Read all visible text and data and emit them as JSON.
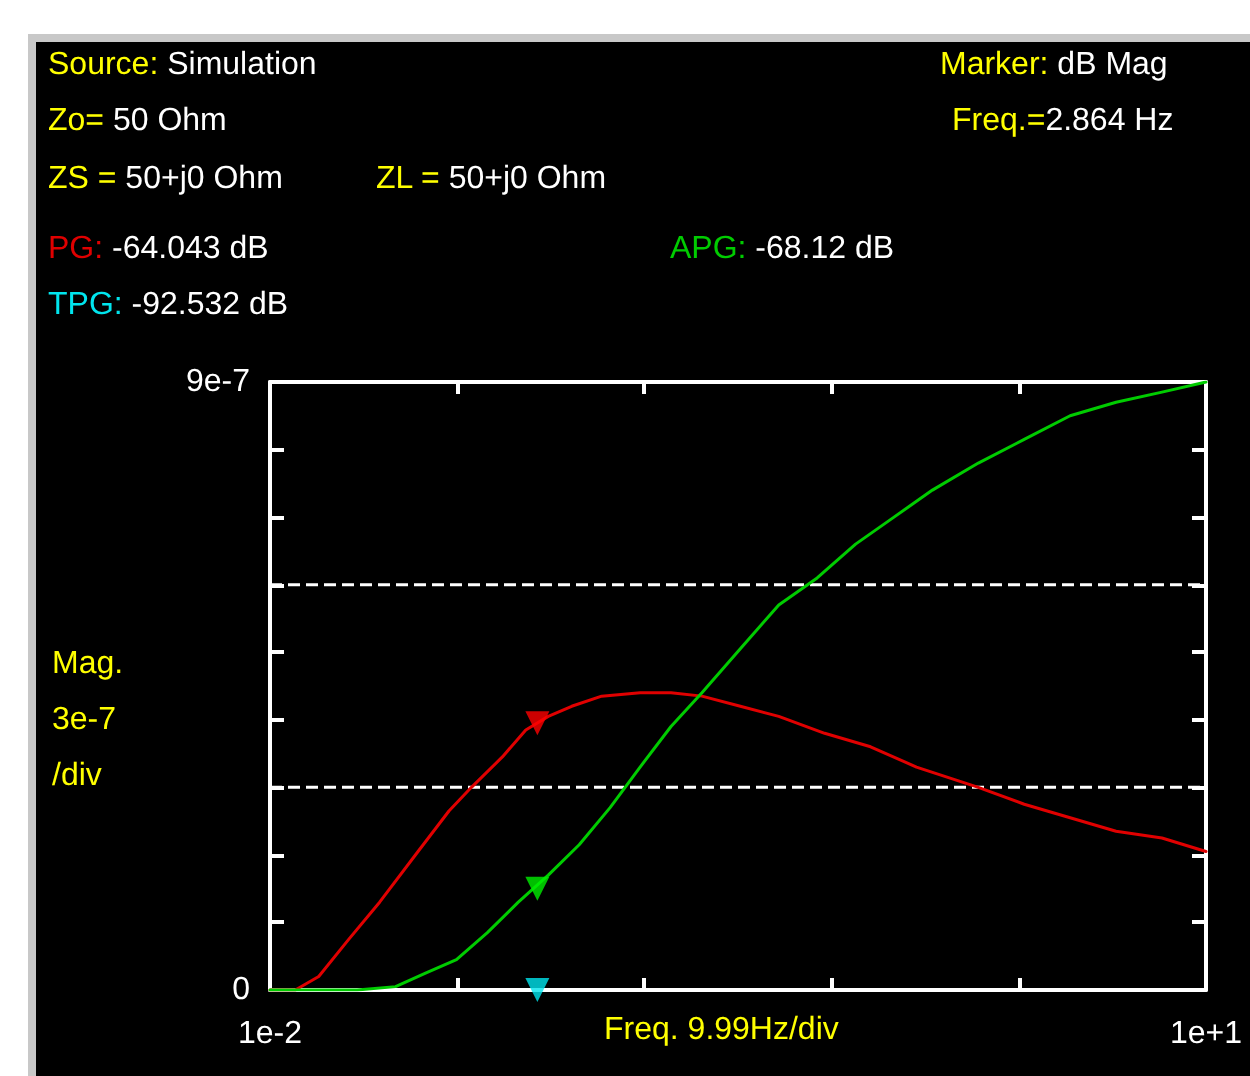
{
  "chart_data": {
    "type": "line",
    "xlabel": "Freq. 9.99Hz/div",
    "ylabel": "Mag.\n3e-7\n/div",
    "annotations": [
      "Source: Simulation",
      "Zo= 50 Ohm",
      "ZS = 50+j0 Ohm",
      "ZL = 50+j0 Ohm",
      "-64.043 dB",
      "-68.12 dB",
      "-92.532 dB",
      "Marker: dB Mag",
      "Freq.=2.864 Hz"
    ],
    "xlim": [
      0.01,
      10
    ],
    "xticks": [
      {
        "value": 0.01,
        "label": "1e-2"
      },
      {
        "value": 2.008,
        "label": null
      },
      {
        "value": 4.006,
        "label": null
      },
      {
        "value": 6.004,
        "label": null
      },
      {
        "value": 8.002,
        "label": null
      },
      {
        "value": 10,
        "label": "1e+1"
      }
    ],
    "ylim": [
      0,
      9e-07
    ],
    "yticks": [
      0,
      {
        "value": 1e-07,
        "label": null
      },
      {
        "value": 2e-07,
        "label": null
      },
      {
        "value": 3e-07,
        "label": null
      },
      {
        "value": 4e-07,
        "label": null
      },
      {
        "value": 5e-07,
        "label": null
      },
      {
        "value": 6e-07,
        "label": null
      },
      {
        "value": 7e-07,
        "label": null
      },
      {
        "value": 8e-07,
        "label": null
      },
      {
        "value": 9e-07,
        "label": "9e-7"
      }
    ],
    "grid": false,
    "marker": "none",
    "line_style": "solid",
    "ref_lines": [
      {
        "axis": "y",
        "value": 3e-07,
        "color": "#ffffff",
        "line_style": "dashed"
      },
      {
        "axis": "y",
        "value": 6e-07,
        "color": "#ffffff",
        "line_style": "dashed"
      }
    ],
    "series": [
      {
        "name": "PG:",
        "color": "#e00000",
        "x": [
          0.01,
          0.28,
          0.53,
          0.85,
          1.18,
          1.59,
          1.92,
          2.16,
          2.49,
          2.74,
          2.98,
          3.23,
          3.55,
          3.96,
          4.29,
          4.62,
          5.03,
          5.44,
          5.93,
          6.42,
          6.91,
          7.57,
          8.06,
          8.55,
          9.04,
          9.53,
          10
        ],
        "values": [
          0,
          0,
          2e-08,
          7.5e-08,
          1.3e-07,
          2.05e-07,
          2.65e-07,
          3e-07,
          3.45e-07,
          3.85e-07,
          4.05e-07,
          4.2e-07,
          4.35e-07,
          4.4e-07,
          4.4e-07,
          4.35e-07,
          4.2e-07,
          4.05e-07,
          3.8e-07,
          3.6e-07,
          3.3e-07,
          3e-07,
          2.75e-07,
          2.55e-07,
          2.35e-07,
          2.25e-07,
          2.05e-07
        ]
      },
      {
        "name": "APG:",
        "color": "#00cc00",
        "x": [
          0.01,
          0.5,
          0.94,
          1.35,
          1.67,
          2.0,
          2.33,
          2.66,
          2.98,
          3.31,
          3.64,
          3.96,
          4.29,
          4.62,
          5.03,
          5.44,
          5.85,
          6.26,
          6.67,
          7.08,
          7.57,
          8.06,
          8.55,
          9.04,
          9.53,
          10
        ],
        "values": [
          0,
          0,
          0,
          5e-09,
          2.5e-08,
          4.5e-08,
          8.5e-08,
          1.3e-07,
          1.7e-07,
          2.15e-07,
          2.7e-07,
          3.3e-07,
          3.9e-07,
          4.4e-07,
          5.05e-07,
          5.7e-07,
          6.1e-07,
          6.6e-07,
          7e-07,
          7.4e-07,
          7.8e-07,
          8.15e-07,
          8.5e-07,
          8.7e-07,
          8.85e-07,
          9e-07
        ]
      },
      {
        "type": "scatter",
        "marker": "triangle",
        "color": "#ff0000",
        "x": [
          2.864
        ],
        "values": [
          3.95e-07
        ]
      },
      {
        "type": "scatter",
        "marker": "triangle",
        "color": "#00ee00",
        "x": [
          2.864
        ],
        "values": [
          1.5e-07
        ]
      },
      {
        "type": "scatter",
        "marker": "triangle",
        "name": "TPG:",
        "color": "#00e5ee",
        "x": [
          2.864
        ],
        "values": [
          0
        ]
      }
    ]
  }
}
